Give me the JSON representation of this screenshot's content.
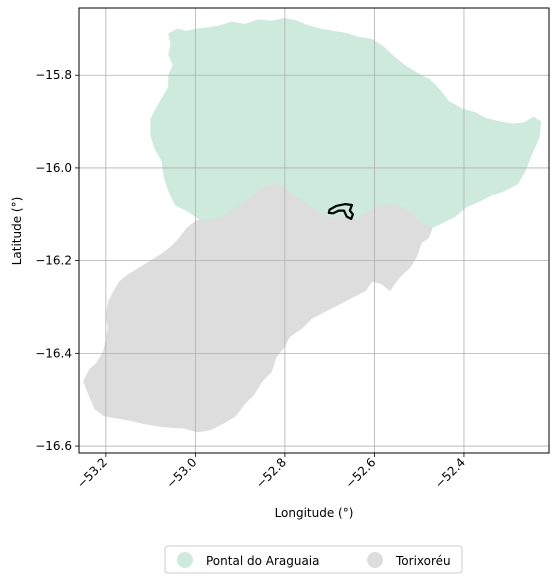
{
  "axes": {
    "xlabel": "Longitude (°)",
    "ylabel": "Latitude (°)",
    "x_ticks": [
      {
        "value": -53.2,
        "label": "−53.2"
      },
      {
        "value": -53.0,
        "label": "−53.0"
      },
      {
        "value": -52.8,
        "label": "−52.8"
      },
      {
        "value": -52.6,
        "label": "−52.6"
      },
      {
        "value": -52.4,
        "label": "−52.4"
      }
    ],
    "y_ticks": [
      {
        "value": -15.8,
        "label": "−15.8"
      },
      {
        "value": -16.0,
        "label": "−16.0"
      },
      {
        "value": -16.2,
        "label": "−16.2"
      },
      {
        "value": -16.4,
        "label": "−16.4"
      },
      {
        "value": -16.6,
        "label": "−16.6"
      }
    ],
    "xlim": [
      -53.26,
      -52.21
    ],
    "ylim": [
      -16.615,
      -15.655
    ],
    "grid": true
  },
  "regions": [
    {
      "name": "Pontal do Araguaia",
      "color": "#cdeadc",
      "outline": [
        [
          -52.825,
          -16.035
        ],
        [
          -52.8,
          -16.042
        ],
        [
          -52.78,
          -16.06
        ],
        [
          -52.755,
          -16.075
        ],
        [
          -52.725,
          -16.095
        ],
        [
          -52.7,
          -16.107
        ],
        [
          -52.67,
          -16.104
        ],
        [
          -52.64,
          -16.108
        ],
        [
          -52.615,
          -16.095
        ],
        [
          -52.59,
          -16.082
        ],
        [
          -52.56,
          -16.08
        ],
        [
          -52.535,
          -16.085
        ],
        [
          -52.515,
          -16.1
        ],
        [
          -52.495,
          -16.12
        ],
        [
          -52.47,
          -16.128
        ],
        [
          -52.45,
          -16.12
        ],
        [
          -52.42,
          -16.105
        ],
        [
          -52.395,
          -16.085
        ],
        [
          -52.365,
          -16.072
        ],
        [
          -52.34,
          -16.06
        ],
        [
          -52.31,
          -16.05
        ],
        [
          -52.28,
          -16.035
        ],
        [
          -52.262,
          -16.005
        ],
        [
          -52.248,
          -15.97
        ],
        [
          -52.232,
          -15.935
        ],
        [
          -52.228,
          -15.9
        ],
        [
          -52.245,
          -15.89
        ],
        [
          -52.265,
          -15.902
        ],
        [
          -52.29,
          -15.905
        ],
        [
          -52.32,
          -15.9
        ],
        [
          -52.35,
          -15.893
        ],
        [
          -52.375,
          -15.88
        ],
        [
          -52.405,
          -15.872
        ],
        [
          -52.435,
          -15.855
        ],
        [
          -52.455,
          -15.83
        ],
        [
          -52.475,
          -15.81
        ],
        [
          -52.505,
          -15.795
        ],
        [
          -52.53,
          -15.78
        ],
        [
          -52.558,
          -15.758
        ],
        [
          -52.58,
          -15.738
        ],
        [
          -52.605,
          -15.722
        ],
        [
          -52.635,
          -15.718
        ],
        [
          -52.66,
          -15.71
        ],
        [
          -52.69,
          -15.705
        ],
        [
          -52.72,
          -15.7
        ],
        [
          -52.75,
          -15.692
        ],
        [
          -52.775,
          -15.682
        ],
        [
          -52.8,
          -15.677
        ],
        [
          -52.83,
          -15.683
        ],
        [
          -52.86,
          -15.68
        ],
        [
          -52.89,
          -15.69
        ],
        [
          -52.92,
          -15.685
        ],
        [
          -52.945,
          -15.693
        ],
        [
          -52.97,
          -15.697
        ],
        [
          -53.0,
          -15.7
        ],
        [
          -53.02,
          -15.705
        ],
        [
          -53.04,
          -15.7
        ],
        [
          -53.06,
          -15.71
        ],
        [
          -53.055,
          -15.735
        ],
        [
          -53.06,
          -15.755
        ],
        [
          -53.05,
          -15.778
        ],
        [
          -53.06,
          -15.8
        ],
        [
          -53.06,
          -15.825
        ],
        [
          -53.075,
          -15.85
        ],
        [
          -53.09,
          -15.875
        ],
        [
          -53.1,
          -15.895
        ],
        [
          -53.1,
          -15.93
        ],
        [
          -53.09,
          -15.96
        ],
        [
          -53.075,
          -15.985
        ],
        [
          -53.07,
          -16.02
        ],
        [
          -53.06,
          -16.05
        ],
        [
          -53.045,
          -16.08
        ],
        [
          -53.015,
          -16.095
        ],
        [
          -52.99,
          -16.112
        ],
        [
          -52.965,
          -16.112
        ],
        [
          -52.94,
          -16.105
        ],
        [
          -52.915,
          -16.09
        ],
        [
          -52.89,
          -16.072
        ],
        [
          -52.865,
          -16.055
        ],
        [
          -52.845,
          -16.038
        ]
      ]
    },
    {
      "name": "Torixoréu",
      "color": "#dddddd",
      "outline": [
        [
          -52.825,
          -16.035
        ],
        [
          -52.8,
          -16.042
        ],
        [
          -52.78,
          -16.06
        ],
        [
          -52.755,
          -16.075
        ],
        [
          -52.725,
          -16.095
        ],
        [
          -52.7,
          -16.107
        ],
        [
          -52.67,
          -16.104
        ],
        [
          -52.64,
          -16.108
        ],
        [
          -52.615,
          -16.095
        ],
        [
          -52.59,
          -16.082
        ],
        [
          -52.56,
          -16.08
        ],
        [
          -52.535,
          -16.085
        ],
        [
          -52.515,
          -16.1
        ],
        [
          -52.495,
          -16.12
        ],
        [
          -52.47,
          -16.128
        ],
        [
          -52.478,
          -16.15
        ],
        [
          -52.495,
          -16.162
        ],
        [
          -52.505,
          -16.19
        ],
        [
          -52.52,
          -16.215
        ],
        [
          -52.54,
          -16.232
        ],
        [
          -52.555,
          -16.25
        ],
        [
          -52.565,
          -16.265
        ],
        [
          -52.585,
          -16.25
        ],
        [
          -52.605,
          -16.245
        ],
        [
          -52.62,
          -16.265
        ],
        [
          -52.65,
          -16.28
        ],
        [
          -52.68,
          -16.295
        ],
        [
          -52.71,
          -16.31
        ],
        [
          -52.74,
          -16.325
        ],
        [
          -52.76,
          -16.345
        ],
        [
          -52.79,
          -16.365
        ],
        [
          -52.8,
          -16.385
        ],
        [
          -52.82,
          -16.41
        ],
        [
          -52.83,
          -16.44
        ],
        [
          -52.85,
          -16.46
        ],
        [
          -52.87,
          -16.49
        ],
        [
          -52.89,
          -16.51
        ],
        [
          -52.91,
          -16.535
        ],
        [
          -52.935,
          -16.55
        ],
        [
          -52.965,
          -16.565
        ],
        [
          -52.995,
          -16.57
        ],
        [
          -53.025,
          -16.562
        ],
        [
          -53.055,
          -16.56
        ],
        [
          -53.085,
          -16.557
        ],
        [
          -53.115,
          -16.552
        ],
        [
          -53.145,
          -16.545
        ],
        [
          -53.175,
          -16.54
        ],
        [
          -53.205,
          -16.535
        ],
        [
          -53.225,
          -16.52
        ],
        [
          -53.238,
          -16.49
        ],
        [
          -53.25,
          -16.46
        ],
        [
          -53.237,
          -16.435
        ],
        [
          -53.22,
          -16.42
        ],
        [
          -53.205,
          -16.395
        ],
        [
          -53.2,
          -16.37
        ],
        [
          -53.195,
          -16.345
        ],
        [
          -53.2,
          -16.32
        ],
        [
          -53.195,
          -16.29
        ],
        [
          -53.185,
          -16.27
        ],
        [
          -53.17,
          -16.245
        ],
        [
          -53.15,
          -16.23
        ],
        [
          -53.125,
          -16.215
        ],
        [
          -53.1,
          -16.2
        ],
        [
          -53.075,
          -16.185
        ],
        [
          -53.055,
          -16.17
        ],
        [
          -53.035,
          -16.15
        ],
        [
          -53.02,
          -16.13
        ],
        [
          -53.0,
          -16.115
        ],
        [
          -52.99,
          -16.112
        ],
        [
          -52.965,
          -16.112
        ],
        [
          -52.94,
          -16.105
        ],
        [
          -52.915,
          -16.09
        ],
        [
          -52.89,
          -16.072
        ],
        [
          -52.865,
          -16.055
        ],
        [
          -52.845,
          -16.038
        ]
      ]
    }
  ],
  "highlight": {
    "color": "#000000",
    "outline": [
      [
        -52.7,
        -16.09
      ],
      [
        -52.685,
        -16.082
      ],
      [
        -52.665,
        -16.078
      ],
      [
        -52.65,
        -16.08
      ],
      [
        -52.655,
        -16.092
      ],
      [
        -52.648,
        -16.1
      ],
      [
        -52.652,
        -16.11
      ],
      [
        -52.662,
        -16.105
      ],
      [
        -52.668,
        -16.092
      ],
      [
        -52.68,
        -16.092
      ],
      [
        -52.692,
        -16.098
      ],
      [
        -52.702,
        -16.097
      ]
    ]
  },
  "legend": {
    "position": "bottom-center",
    "items": [
      {
        "label": "Pontal do Araguaia",
        "color": "#cdeadc"
      },
      {
        "label": "Torixoréu",
        "color": "#dddddd"
      }
    ]
  }
}
